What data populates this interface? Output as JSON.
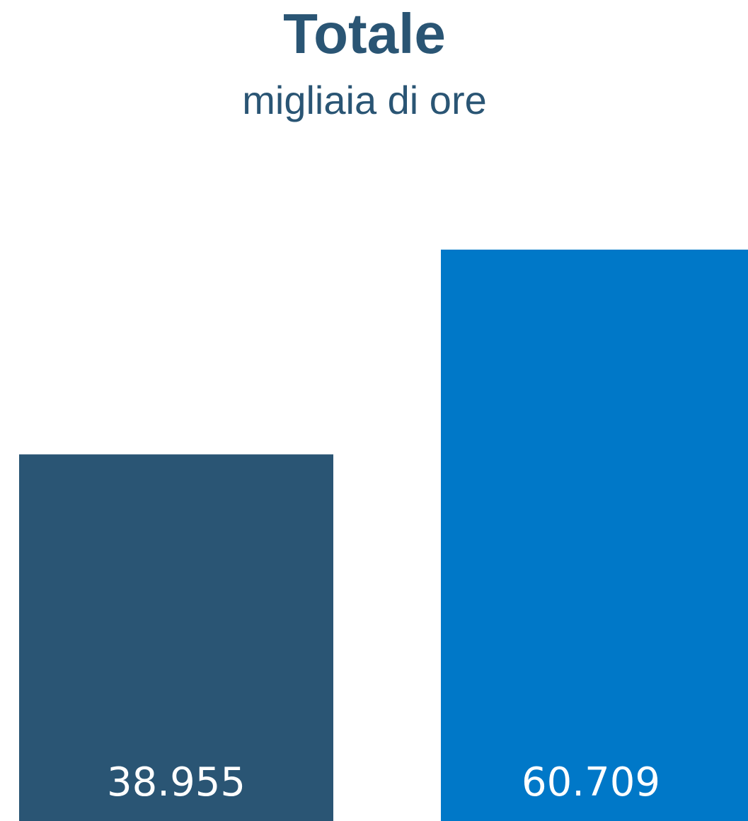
{
  "chart_data": {
    "type": "bar",
    "title": "Totale",
    "subtitle": "migliaia di ore",
    "categories": [
      null,
      null
    ],
    "values": [
      38955,
      60709
    ],
    "value_labels": [
      "38.955",
      "60.709"
    ],
    "colors": [
      "#2a5574",
      "#0078c8"
    ]
  }
}
